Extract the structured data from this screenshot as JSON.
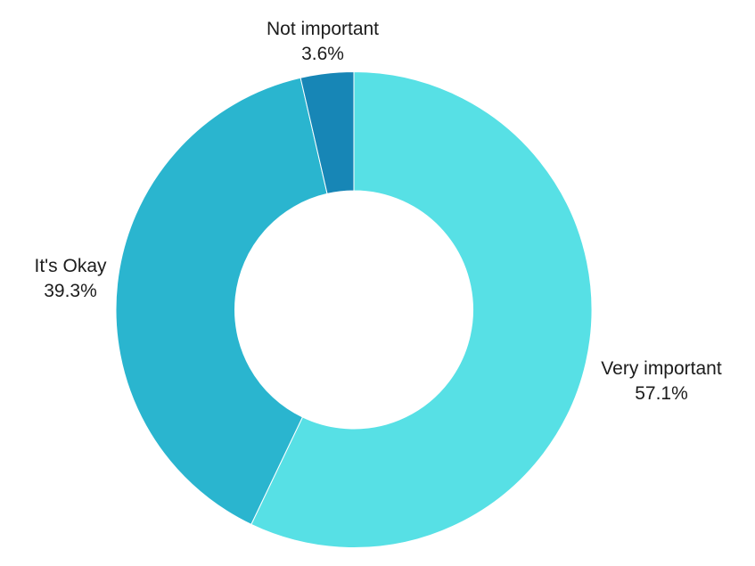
{
  "chart_data": {
    "type": "pie",
    "subtype": "donut",
    "title": "",
    "legend": "none",
    "grid": false,
    "start_angle_deg": 0,
    "direction": "clockwise",
    "inner_radius_ratio": 0.5,
    "separator_color": "#ffffff",
    "label_color": "#1c1c1c",
    "background_color": "#ffffff",
    "slices": [
      {
        "label": "Very important",
        "value": 57.1,
        "value_label": "57.1%",
        "color": "#57E0E5"
      },
      {
        "label": "It's Okay",
        "value": 39.3,
        "value_label": "39.3%",
        "color": "#2AB5CF"
      },
      {
        "label": "Not important",
        "value": 3.6,
        "value_label": "3.6%",
        "color": "#1786B6"
      }
    ]
  }
}
